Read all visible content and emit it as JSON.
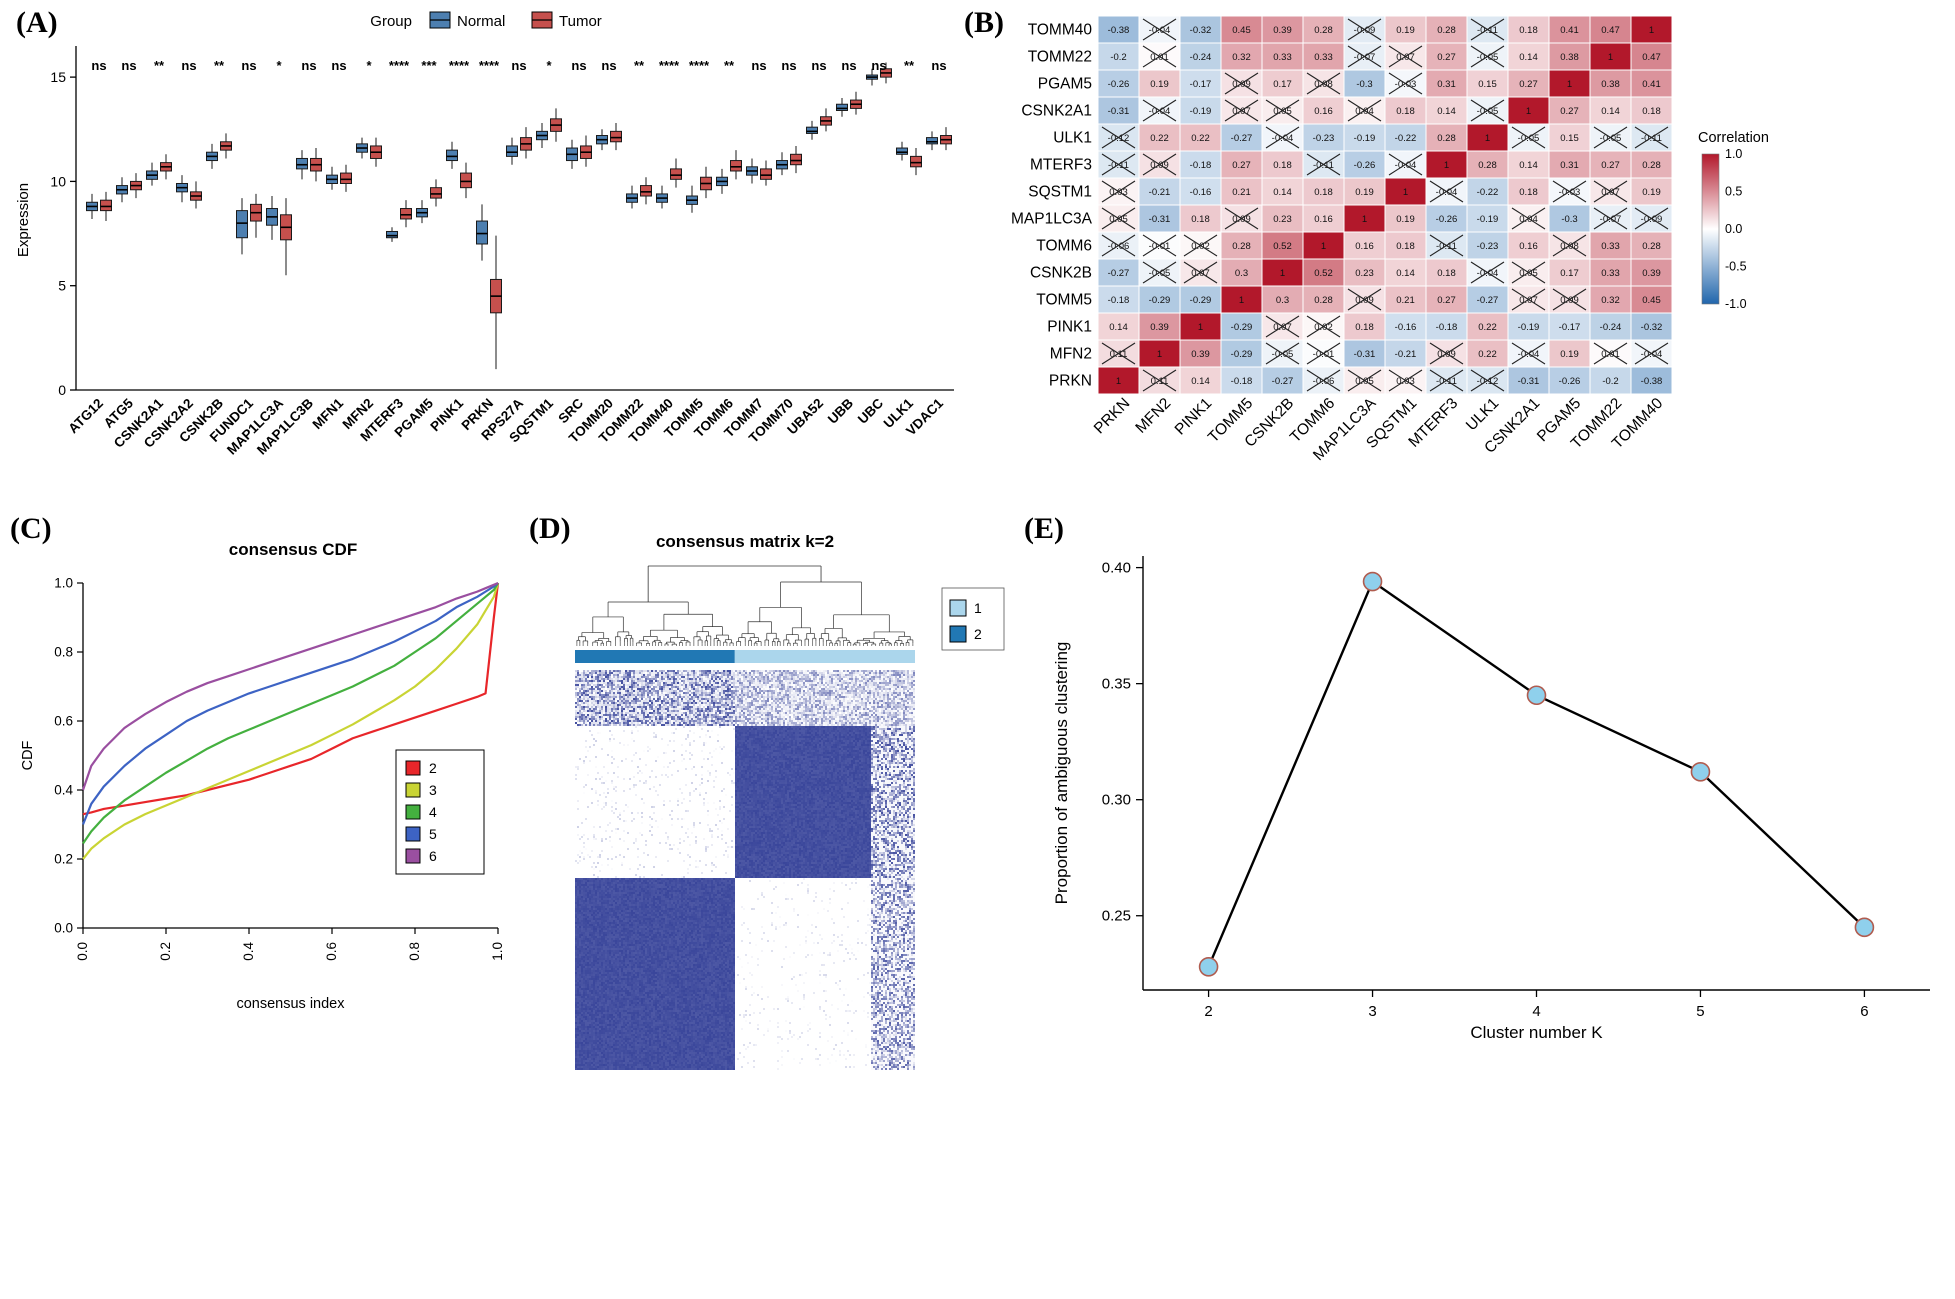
{
  "labels": {
    "a": "(A)",
    "b": "(B)",
    "c": "(C)",
    "d": "(D)",
    "e": "(E)"
  },
  "chart_data": [
    {
      "id": "A",
      "type": "bar",
      "subtype": "grouped-boxplot",
      "ylabel": "Expression",
      "legend_title": "Group",
      "series": [
        {
          "name": "Normal",
          "color": "#4d7fb0"
        },
        {
          "name": "Tumor",
          "color": "#c6504d"
        }
      ],
      "ylim": [
        0,
        16.3
      ],
      "yticks": [
        0,
        5,
        10,
        15
      ],
      "categories": [
        "ATG12",
        "ATG5",
        "CSNK2A1",
        "CSNK2A2",
        "CSNK2B",
        "FUNDC1",
        "MAP1LC3A",
        "MAP1LC3B",
        "MFN1",
        "MFN2",
        "MTERF3",
        "PGAM5",
        "PINK1",
        "PRKN",
        "RPS27A",
        "SQSTM1",
        "SRC",
        "TOMM20",
        "TOMM22",
        "TOMM40",
        "TOMM5",
        "TOMM6",
        "TOMM7",
        "TOMM70",
        "UBA52",
        "UBB",
        "UBC",
        "ULK1",
        "VDAC1"
      ],
      "significance": [
        "ns",
        "ns",
        "**",
        "ns",
        "**",
        "ns",
        "*",
        "ns",
        "ns",
        "*",
        "****",
        "***",
        "****",
        "****",
        "ns",
        "*",
        "ns",
        "ns",
        "**",
        "****",
        "****",
        "**",
        "ns",
        "ns",
        "ns",
        "ns",
        "ns",
        "**",
        "ns"
      ],
      "normal": [
        [
          8.2,
          8.6,
          8.8,
          9.0,
          9.4
        ],
        [
          9.0,
          9.4,
          9.6,
          9.8,
          10.2
        ],
        [
          9.8,
          10.1,
          10.3,
          10.5,
          10.9
        ],
        [
          9.0,
          9.5,
          9.7,
          9.9,
          10.3
        ],
        [
          10.6,
          11.0,
          11.2,
          11.4,
          11.8
        ],
        [
          6.5,
          7.3,
          8.0,
          8.6,
          9.2
        ],
        [
          7.2,
          7.9,
          8.3,
          8.7,
          9.3
        ],
        [
          10.1,
          10.6,
          10.8,
          11.1,
          11.5
        ],
        [
          9.6,
          9.9,
          10.1,
          10.3,
          10.7
        ],
        [
          11.1,
          11.4,
          11.6,
          11.8,
          12.1
        ],
        [
          7.1,
          7.3,
          7.4,
          7.6,
          7.8
        ],
        [
          8.0,
          8.3,
          8.5,
          8.7,
          9.1
        ],
        [
          10.6,
          11.0,
          11.2,
          11.5,
          11.9
        ],
        [
          6.2,
          7.0,
          7.5,
          8.1,
          8.9
        ],
        [
          10.8,
          11.2,
          11.4,
          11.7,
          12.1
        ],
        [
          11.6,
          12.0,
          12.2,
          12.4,
          12.8
        ],
        [
          10.6,
          11.0,
          11.3,
          11.6,
          12.0
        ],
        [
          11.5,
          11.8,
          12.0,
          12.2,
          12.5
        ],
        [
          8.7,
          9.0,
          9.2,
          9.4,
          9.8
        ],
        [
          8.7,
          9.0,
          9.2,
          9.4,
          9.8
        ],
        [
          8.5,
          8.9,
          9.1,
          9.3,
          9.8
        ],
        [
          9.4,
          9.8,
          10.0,
          10.2,
          10.6
        ],
        [
          9.9,
          10.3,
          10.5,
          10.7,
          11.1
        ],
        [
          10.3,
          10.6,
          10.8,
          11.0,
          11.4
        ],
        [
          12.0,
          12.3,
          12.4,
          12.6,
          12.9
        ],
        [
          13.1,
          13.4,
          13.5,
          13.7,
          14.0
        ],
        [
          14.6,
          14.9,
          15.0,
          15.1,
          15.4
        ],
        [
          11.0,
          11.3,
          11.4,
          11.6,
          11.9
        ],
        [
          11.5,
          11.8,
          11.9,
          12.1,
          12.4
        ]
      ],
      "tumor": [
        [
          8.1,
          8.6,
          8.8,
          9.1,
          9.5
        ],
        [
          9.2,
          9.6,
          9.8,
          10.0,
          10.4
        ],
        [
          10.1,
          10.5,
          10.7,
          10.9,
          11.3
        ],
        [
          8.7,
          9.1,
          9.3,
          9.5,
          10.0
        ],
        [
          11.1,
          11.5,
          11.7,
          11.9,
          12.3
        ],
        [
          7.3,
          8.1,
          8.5,
          8.9,
          9.4
        ],
        [
          5.5,
          7.2,
          7.8,
          8.4,
          9.2
        ],
        [
          10.0,
          10.5,
          10.8,
          11.1,
          11.6
        ],
        [
          9.5,
          9.9,
          10.1,
          10.4,
          10.8
        ],
        [
          10.7,
          11.1,
          11.4,
          11.7,
          12.1
        ],
        [
          7.8,
          8.2,
          8.4,
          8.7,
          9.1
        ],
        [
          8.8,
          9.2,
          9.4,
          9.7,
          10.1
        ],
        [
          9.2,
          9.7,
          10.0,
          10.4,
          10.9
        ],
        [
          1.0,
          3.7,
          4.5,
          5.3,
          7.4
        ],
        [
          11.1,
          11.5,
          11.8,
          12.1,
          12.6
        ],
        [
          11.9,
          12.4,
          12.7,
          13.0,
          13.5
        ],
        [
          10.7,
          11.1,
          11.4,
          11.7,
          12.2
        ],
        [
          11.5,
          11.9,
          12.1,
          12.4,
          12.8
        ],
        [
          8.9,
          9.3,
          9.5,
          9.8,
          10.2
        ],
        [
          9.7,
          10.1,
          10.3,
          10.6,
          11.1
        ],
        [
          9.2,
          9.6,
          9.9,
          10.2,
          10.7
        ],
        [
          10.1,
          10.5,
          10.7,
          11.0,
          11.5
        ],
        [
          9.8,
          10.1,
          10.3,
          10.6,
          11.0
        ],
        [
          10.4,
          10.8,
          11.0,
          11.3,
          11.7
        ],
        [
          12.4,
          12.7,
          12.9,
          13.1,
          13.5
        ],
        [
          13.2,
          13.5,
          13.7,
          13.9,
          14.3
        ],
        [
          14.7,
          15.0,
          15.2,
          15.4,
          15.7
        ],
        [
          10.3,
          10.7,
          10.9,
          11.2,
          11.6
        ],
        [
          11.5,
          11.8,
          12.0,
          12.2,
          12.6
        ]
      ]
    },
    {
      "id": "B",
      "type": "heatmap",
      "legend_title": "Correlation",
      "colorbar_ticks": [
        "1.0",
        "0.5",
        "0.0",
        "-0.5",
        "-1.0"
      ],
      "color_pos": "#b2182b",
      "color_neg": "#2166ac",
      "cols": [
        "PRKN",
        "MFN2",
        "PINK1",
        "TOMM5",
        "CSNK2B",
        "TOMM6",
        "MAP1LC3A",
        "SQSTM1",
        "MTERF3",
        "ULK1",
        "CSNK2A1",
        "PGAM5",
        "TOMM22",
        "TOMM40"
      ],
      "rows": [
        "TOMM40",
        "TOMM22",
        "PGAM5",
        "CSNK2A1",
        "ULK1",
        "MTERF3",
        "SQSTM1",
        "MAP1LC3A",
        "TOMM6",
        "CSNK2B",
        "TOMM5",
        "PINK1",
        "MFN2",
        "PRKN"
      ],
      "values": [
        [
          -0.38,
          -0.04,
          -0.32,
          0.45,
          0.39,
          0.28,
          -0.09,
          0.19,
          0.28,
          -0.11,
          0.18,
          0.41,
          0.47,
          1
        ],
        [
          -0.2,
          0.01,
          -0.24,
          0.32,
          0.33,
          0.33,
          -0.07,
          0.07,
          0.27,
          -0.05,
          0.14,
          0.38,
          1,
          0.47
        ],
        [
          -0.26,
          0.19,
          -0.17,
          0.09,
          0.17,
          0.08,
          -0.3,
          -0.03,
          0.31,
          0.15,
          0.27,
          1,
          0.38,
          0.41
        ],
        [
          -0.31,
          -0.04,
          -0.19,
          0.07,
          0.05,
          0.16,
          0.04,
          0.18,
          0.14,
          -0.05,
          1,
          0.27,
          0.14,
          0.18
        ],
        [
          -0.12,
          0.22,
          0.22,
          -0.27,
          -0.04,
          -0.23,
          -0.19,
          -0.22,
          0.28,
          1,
          -0.05,
          0.15,
          -0.05,
          -0.11
        ],
        [
          -0.11,
          0.09,
          -0.18,
          0.27,
          0.18,
          -0.11,
          -0.26,
          -0.04,
          1,
          0.28,
          0.14,
          0.31,
          0.27,
          0.28
        ],
        [
          0.03,
          -0.21,
          -0.16,
          0.21,
          0.14,
          0.18,
          0.19,
          1,
          -0.04,
          -0.22,
          0.18,
          -0.03,
          0.07,
          0.19
        ],
        [
          0.05,
          -0.31,
          0.18,
          0.09,
          0.23,
          0.16,
          1,
          0.19,
          -0.26,
          -0.19,
          0.04,
          -0.3,
          -0.07,
          -0.09
        ],
        [
          -0.06,
          -0.01,
          0.02,
          0.28,
          0.52,
          1,
          0.16,
          0.18,
          -0.11,
          -0.23,
          0.16,
          0.08,
          0.33,
          0.28
        ],
        [
          -0.27,
          -0.05,
          0.07,
          0.3,
          1,
          0.52,
          0.23,
          0.14,
          0.18,
          -0.04,
          0.05,
          0.17,
          0.33,
          0.39
        ],
        [
          -0.18,
          -0.29,
          -0.29,
          1,
          0.3,
          0.28,
          0.09,
          0.21,
          0.27,
          -0.27,
          0.07,
          0.09,
          0.32,
          0.45
        ],
        [
          0.14,
          0.39,
          1,
          -0.29,
          0.07,
          0.02,
          0.18,
          -0.16,
          -0.18,
          0.22,
          -0.19,
          -0.17,
          -0.24,
          -0.32
        ],
        [
          0.11,
          1,
          0.39,
          -0.29,
          -0.05,
          -0.01,
          -0.31,
          -0.21,
          0.09,
          0.22,
          -0.04,
          0.19,
          0.01,
          -0.04
        ],
        [
          1,
          0.11,
          0.14,
          -0.18,
          -0.27,
          -0.06,
          0.05,
          0.03,
          -0.11,
          -0.12,
          -0.31,
          -0.26,
          -0.2,
          -0.38
        ]
      ],
      "crossed": [
        [
          0,
          1,
          0,
          0,
          0,
          0,
          1,
          0,
          0,
          1,
          0,
          0,
          0,
          0
        ],
        [
          0,
          1,
          0,
          0,
          0,
          0,
          1,
          1,
          0,
          1,
          0,
          0,
          0,
          0
        ],
        [
          0,
          0,
          0,
          1,
          0,
          1,
          0,
          1,
          0,
          0,
          0,
          0,
          0,
          0
        ],
        [
          0,
          1,
          0,
          1,
          1,
          0,
          1,
          0,
          0,
          1,
          0,
          0,
          0,
          0
        ],
        [
          1,
          0,
          0,
          0,
          1,
          0,
          0,
          0,
          0,
          0,
          1,
          0,
          1,
          1
        ],
        [
          1,
          1,
          0,
          0,
          0,
          1,
          0,
          1,
          0,
          0,
          0,
          0,
          0,
          0
        ],
        [
          1,
          0,
          0,
          0,
          0,
          0,
          0,
          0,
          1,
          0,
          0,
          1,
          1,
          0
        ],
        [
          1,
          0,
          0,
          1,
          0,
          0,
          0,
          0,
          0,
          0,
          1,
          0,
          1,
          1
        ],
        [
          1,
          1,
          1,
          0,
          0,
          0,
          0,
          0,
          1,
          0,
          0,
          1,
          0,
          0
        ],
        [
          0,
          1,
          1,
          0,
          0,
          0,
          0,
          0,
          0,
          1,
          1,
          0,
          0,
          0
        ],
        [
          0,
          0,
          0,
          0,
          0,
          0,
          1,
          0,
          0,
          0,
          1,
          1,
          0,
          0
        ],
        [
          0,
          0,
          0,
          0,
          1,
          1,
          0,
          0,
          0,
          0,
          0,
          0,
          0,
          0
        ],
        [
          1,
          0,
          0,
          0,
          1,
          1,
          0,
          0,
          1,
          0,
          1,
          0,
          1,
          1
        ],
        [
          0,
          1,
          0,
          0,
          0,
          1,
          1,
          1,
          1,
          1,
          0,
          0,
          0,
          0
        ]
      ]
    },
    {
      "id": "C",
      "type": "line",
      "title": "consensus CDF",
      "xlabel": "consensus index",
      "ylabel": "CDF",
      "xlim": [
        0,
        1
      ],
      "ylim": [
        0,
        1
      ],
      "xticks": [
        0,
        0.2,
        0.4,
        0.6,
        0.8,
        1.0
      ],
      "yticks": [
        0,
        0.2,
        0.4,
        0.6,
        0.8,
        1.0
      ],
      "x": [
        0,
        0.02,
        0.05,
        0.1,
        0.15,
        0.2,
        0.25,
        0.3,
        0.35,
        0.4,
        0.45,
        0.5,
        0.55,
        0.6,
        0.65,
        0.7,
        0.75,
        0.8,
        0.85,
        0.9,
        0.95,
        0.97,
        0.99,
        1
      ],
      "series": [
        {
          "name": "2",
          "color": "#e8262a",
          "values": [
            0.33,
            0.335,
            0.345,
            0.355,
            0.365,
            0.375,
            0.385,
            0.4,
            0.415,
            0.43,
            0.45,
            0.47,
            0.49,
            0.52,
            0.55,
            0.57,
            0.59,
            0.61,
            0.63,
            0.65,
            0.67,
            0.68,
            0.9,
            1.0
          ]
        },
        {
          "name": "3",
          "color": "#c9d434",
          "values": [
            0.2,
            0.23,
            0.26,
            0.3,
            0.33,
            0.355,
            0.38,
            0.405,
            0.43,
            0.455,
            0.48,
            0.505,
            0.53,
            0.56,
            0.59,
            0.625,
            0.66,
            0.7,
            0.75,
            0.81,
            0.88,
            0.92,
            0.96,
            1.0
          ]
        },
        {
          "name": "4",
          "color": "#44b03f",
          "values": [
            0.245,
            0.28,
            0.32,
            0.37,
            0.41,
            0.45,
            0.485,
            0.52,
            0.55,
            0.575,
            0.6,
            0.625,
            0.65,
            0.675,
            0.7,
            0.73,
            0.76,
            0.8,
            0.84,
            0.89,
            0.94,
            0.96,
            0.98,
            1.0
          ]
        },
        {
          "name": "5",
          "color": "#3d63c4",
          "values": [
            0.3,
            0.36,
            0.41,
            0.47,
            0.52,
            0.56,
            0.6,
            0.63,
            0.655,
            0.68,
            0.7,
            0.72,
            0.74,
            0.76,
            0.78,
            0.805,
            0.83,
            0.86,
            0.89,
            0.93,
            0.96,
            0.975,
            0.99,
            1.0
          ]
        },
        {
          "name": "6",
          "color": "#9a4fa0",
          "values": [
            0.4,
            0.47,
            0.52,
            0.58,
            0.62,
            0.655,
            0.685,
            0.71,
            0.73,
            0.75,
            0.77,
            0.79,
            0.81,
            0.83,
            0.85,
            0.87,
            0.89,
            0.91,
            0.93,
            0.955,
            0.975,
            0.985,
            0.995,
            1.0
          ]
        }
      ]
    },
    {
      "id": "D",
      "type": "heatmap",
      "subtype": "consensus-matrix",
      "title": "consensus matrix k=2",
      "legend": [
        {
          "label": "1",
          "color": "#abd6ec"
        },
        {
          "label": "2",
          "color": "#2178b4"
        }
      ],
      "matrix_color": "#3a468f",
      "col_split": 0.47,
      "row_splits": [
        0.14,
        0.52
      ],
      "noise_band": 0.87
    },
    {
      "id": "E",
      "type": "line",
      "xlabel": "Cluster number K",
      "ylabel": "Proportion of ambiguous clustering",
      "x": [
        2,
        3,
        4,
        5,
        6
      ],
      "values": [
        0.228,
        0.394,
        0.345,
        0.312,
        0.245
      ],
      "yticks": [
        0.25,
        0.3,
        0.35,
        0.4
      ],
      "ylim": [
        0.218,
        0.405
      ],
      "point_fill": "#8fd0ec",
      "point_stroke": "#b05c4f",
      "line_color": "#000000"
    }
  ]
}
